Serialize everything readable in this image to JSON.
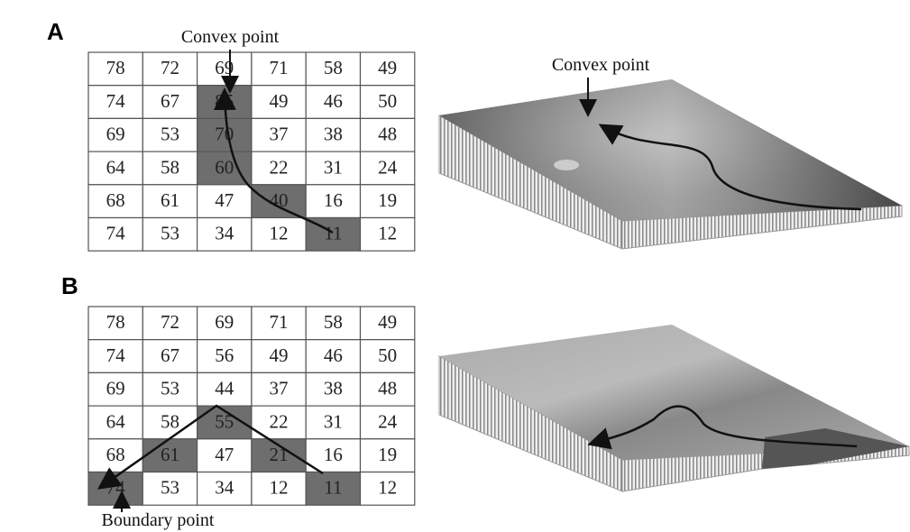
{
  "panels": [
    {
      "label": "A",
      "grid_annotation": "Convex point",
      "terrain_annotation": "Convex point",
      "grid": [
        [
          78,
          72,
          69,
          71,
          58,
          49
        ],
        [
          74,
          67,
          85,
          49,
          46,
          50
        ],
        [
          69,
          53,
          70,
          37,
          38,
          48
        ],
        [
          64,
          58,
          60,
          22,
          31,
          24
        ],
        [
          68,
          61,
          47,
          40,
          16,
          19
        ],
        [
          74,
          53,
          34,
          12,
          11,
          12
        ]
      ]
    },
    {
      "label": "B",
      "grid_annotation": "Boundary point",
      "grid": [
        [
          78,
          72,
          69,
          71,
          58,
          49
        ],
        [
          74,
          67,
          56,
          49,
          46,
          50
        ],
        [
          69,
          53,
          44,
          37,
          38,
          48
        ],
        [
          64,
          58,
          55,
          22,
          31,
          24
        ],
        [
          68,
          61,
          47,
          21,
          16,
          19
        ],
        [
          74,
          53,
          34,
          12,
          11,
          12
        ]
      ]
    }
  ]
}
